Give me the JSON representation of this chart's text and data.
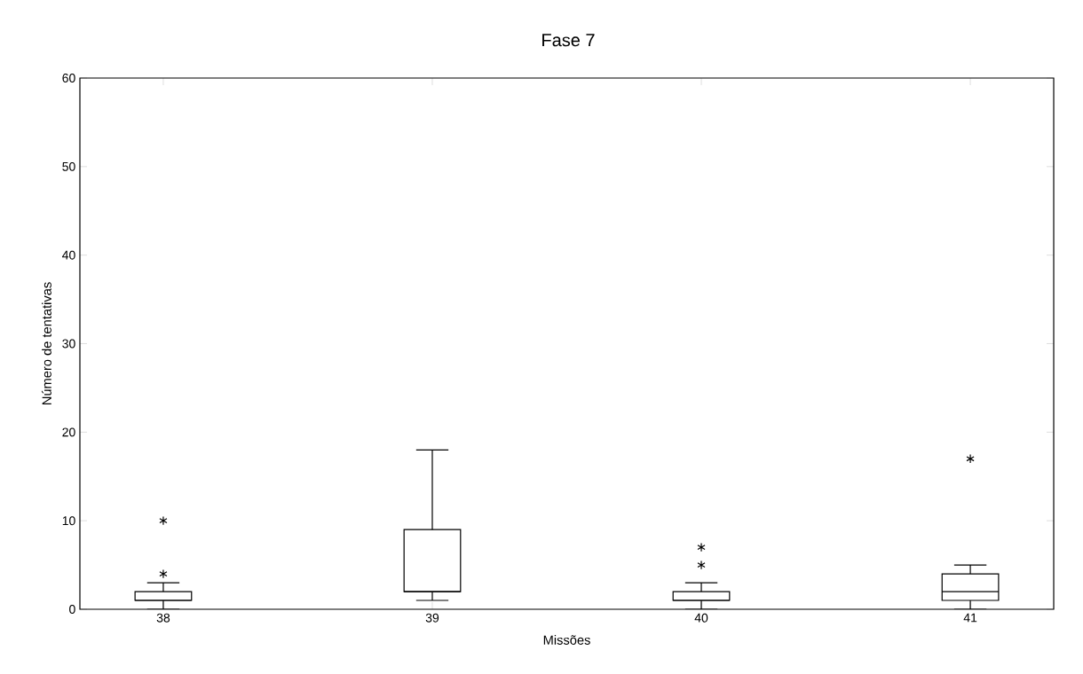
{
  "chart_data": {
    "type": "box",
    "title": "Fase 7",
    "xlabel": "Missões",
    "ylabel": "Número de tentativas",
    "categories": [
      "38",
      "39",
      "40",
      "41"
    ],
    "boxes": [
      {
        "low": 0,
        "q1": 1,
        "median": 1,
        "q3": 2,
        "high": 3,
        "outliers": [
          4,
          10
        ]
      },
      {
        "low": 1,
        "q1": 2,
        "median": 2,
        "q3": 9,
        "high": 18
      },
      {
        "low": 0,
        "q1": 1,
        "median": 1,
        "q3": 2,
        "high": 3,
        "outliers": [
          5,
          7
        ]
      },
      {
        "low": 0,
        "q1": 1,
        "median": 2,
        "q3": 4,
        "high": 5,
        "outliers": [
          17
        ]
      }
    ],
    "color": "#000000",
    "marker": "star",
    "ylim": [
      0,
      60
    ],
    "yticks": [
      0,
      10,
      20,
      30,
      40,
      50,
      60
    ],
    "grid": false
  }
}
